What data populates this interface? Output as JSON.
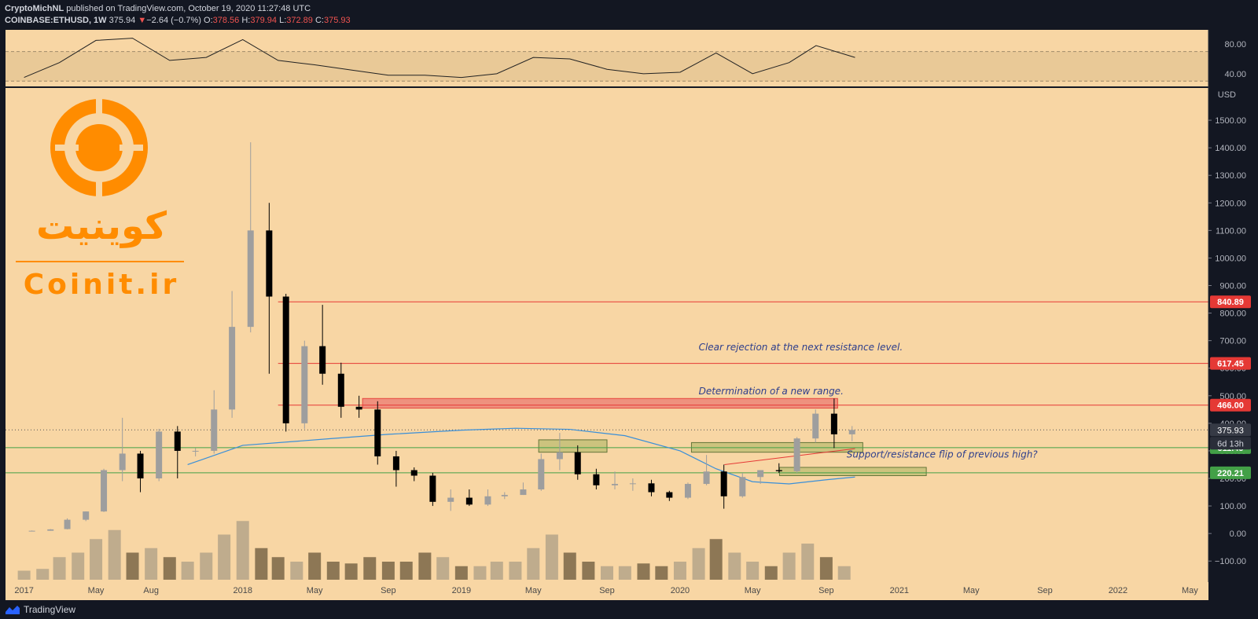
{
  "header": {
    "author": "CryptoMichNL",
    "published": "published on TradingView.com, October 19, 2020 11:27:48 UTC",
    "symbol": "COINBASE:ETHUSD, 1W",
    "last": "375.94",
    "arrow": "▼",
    "change": "−2.64 (−0.7%)",
    "o_label": "O:",
    "o": "378.56",
    "h_label": "H:",
    "h": "379.94",
    "l_label": "L:",
    "l": "372.89",
    "c_label": "C:",
    "c": "375.93"
  },
  "footer": {
    "brand": "TradingView"
  },
  "watermark": {
    "script": "کوینیت",
    "site": "Coinit.ir"
  },
  "colors": {
    "background": "#f8d6a4",
    "up": "#9e9e9e",
    "down": "#000000",
    "resistance": "#e53935",
    "support": "#43a047",
    "rsi_band": "#e5c594",
    "ma": "#3a8fd8",
    "annotation": "#2d3e8c",
    "watermark": "#ff8c00"
  },
  "chart_data": [
    {
      "type": "line",
      "title": "RSI",
      "ylim": [
        25,
        95
      ],
      "y_ticks": [
        "80.00",
        "40.00"
      ],
      "band": [
        30,
        70
      ],
      "x": [
        "2017-01-01",
        "2017-03-01",
        "2017-05-01",
        "2017-07-01",
        "2017-09-01",
        "2017-11-01",
        "2018-01-01",
        "2018-03-01",
        "2018-05-01",
        "2018-07-01",
        "2018-09-01",
        "2018-11-01",
        "2019-01-01",
        "2019-03-01",
        "2019-05-01",
        "2019-07-01",
        "2019-09-01",
        "2019-11-01",
        "2020-01-01",
        "2020-03-01",
        "2020-05-01",
        "2020-07-01",
        "2020-08-15",
        "2020-10-19"
      ],
      "values": [
        35,
        55,
        85,
        88,
        58,
        62,
        86,
        58,
        52,
        45,
        38,
        38,
        35,
        40,
        62,
        60,
        46,
        40,
        42,
        68,
        40,
        55,
        78,
        62
      ]
    },
    {
      "type": "candlestick",
      "symbol": "COINBASE:ETHUSD",
      "interval": "1W",
      "currency": "USD",
      "ylim": [
        -125,
        1600
      ],
      "y_ticks": [
        "1500.00",
        "1400.00",
        "1300.00",
        "1200.00",
        "1100.00",
        "1000.00",
        "900.00",
        "800.00",
        "700.00",
        "600.00",
        "500.00",
        "400.00",
        "300.00",
        "200.00",
        "100.00",
        "0.00",
        "−100.00"
      ],
      "x_ticks": [
        "2017",
        "May",
        "Aug",
        "2018",
        "May",
        "Sep",
        "2019",
        "May",
        "Sep",
        "2020",
        "May",
        "Sep",
        "2021",
        "May",
        "Sep",
        "2022",
        "May"
      ],
      "x_range": [
        "2016-12-01",
        "2022-06-01"
      ],
      "ohlc_monthly": [
        {
          "date": "2017-01-01",
          "open": 8,
          "high": 11,
          "low": 8,
          "close": 10
        },
        {
          "date": "2017-02-01",
          "open": 10,
          "high": 16,
          "low": 10,
          "close": 15
        },
        {
          "date": "2017-03-01",
          "open": 16,
          "high": 55,
          "low": 15,
          "close": 50
        },
        {
          "date": "2017-04-01",
          "open": 50,
          "high": 80,
          "low": 45,
          "close": 80
        },
        {
          "date": "2017-05-01",
          "open": 80,
          "high": 235,
          "low": 78,
          "close": 230
        },
        {
          "date": "2017-06-01",
          "open": 230,
          "high": 420,
          "low": 190,
          "close": 290
        },
        {
          "date": "2017-07-01",
          "open": 290,
          "high": 300,
          "low": 150,
          "close": 200
        },
        {
          "date": "2017-08-01",
          "open": 200,
          "high": 380,
          "low": 190,
          "close": 370
        },
        {
          "date": "2017-09-01",
          "open": 370,
          "high": 390,
          "low": 200,
          "close": 300
        },
        {
          "date": "2017-10-01",
          "open": 300,
          "high": 310,
          "low": 280,
          "close": 300
        },
        {
          "date": "2017-11-01",
          "open": 300,
          "high": 520,
          "low": 290,
          "close": 450
        },
        {
          "date": "2017-12-01",
          "open": 450,
          "high": 880,
          "low": 420,
          "close": 750
        },
        {
          "date": "2018-01-01",
          "open": 750,
          "high": 1420,
          "low": 730,
          "close": 1100
        },
        {
          "date": "2018-02-01",
          "open": 1100,
          "high": 1200,
          "low": 580,
          "close": 860
        },
        {
          "date": "2018-03-01",
          "open": 860,
          "high": 870,
          "low": 370,
          "close": 400
        },
        {
          "date": "2018-04-01",
          "open": 400,
          "high": 700,
          "low": 380,
          "close": 680
        },
        {
          "date": "2018-05-01",
          "open": 680,
          "high": 830,
          "low": 540,
          "close": 580
        },
        {
          "date": "2018-06-01",
          "open": 580,
          "high": 620,
          "low": 420,
          "close": 460
        },
        {
          "date": "2018-07-01",
          "open": 460,
          "high": 500,
          "low": 420,
          "close": 450
        },
        {
          "date": "2018-08-01",
          "open": 450,
          "high": 480,
          "low": 250,
          "close": 280
        },
        {
          "date": "2018-09-01",
          "open": 280,
          "high": 300,
          "low": 170,
          "close": 230
        },
        {
          "date": "2018-10-01",
          "open": 230,
          "high": 240,
          "low": 190,
          "close": 210
        },
        {
          "date": "2018-11-01",
          "open": 210,
          "high": 220,
          "low": 100,
          "close": 115
        },
        {
          "date": "2018-12-01",
          "open": 115,
          "high": 160,
          "low": 82,
          "close": 130
        },
        {
          "date": "2019-01-01",
          "open": 130,
          "high": 160,
          "low": 100,
          "close": 105
        },
        {
          "date": "2019-02-01",
          "open": 105,
          "high": 160,
          "low": 100,
          "close": 135
        },
        {
          "date": "2019-03-01",
          "open": 135,
          "high": 150,
          "low": 125,
          "close": 140
        },
        {
          "date": "2019-04-01",
          "open": 140,
          "high": 185,
          "low": 140,
          "close": 160
        },
        {
          "date": "2019-05-01",
          "open": 160,
          "high": 290,
          "low": 155,
          "close": 270
        },
        {
          "date": "2019-06-01",
          "open": 270,
          "high": 365,
          "low": 230,
          "close": 295
        },
        {
          "date": "2019-07-01",
          "open": 295,
          "high": 320,
          "low": 195,
          "close": 215
        },
        {
          "date": "2019-08-01",
          "open": 215,
          "high": 235,
          "low": 160,
          "close": 175
        },
        {
          "date": "2019-09-01",
          "open": 175,
          "high": 225,
          "low": 160,
          "close": 180
        },
        {
          "date": "2019-10-01",
          "open": 180,
          "high": 200,
          "low": 155,
          "close": 182
        },
        {
          "date": "2019-11-01",
          "open": 182,
          "high": 195,
          "low": 135,
          "close": 150
        },
        {
          "date": "2019-12-01",
          "open": 150,
          "high": 155,
          "low": 118,
          "close": 130
        },
        {
          "date": "2020-01-01",
          "open": 130,
          "high": 185,
          "low": 125,
          "close": 180
        },
        {
          "date": "2020-02-01",
          "open": 180,
          "high": 285,
          "low": 175,
          "close": 225
        },
        {
          "date": "2020-03-01",
          "open": 225,
          "high": 250,
          "low": 90,
          "close": 135
        },
        {
          "date": "2020-04-01",
          "open": 135,
          "high": 220,
          "low": 130,
          "close": 205
        },
        {
          "date": "2020-05-01",
          "open": 205,
          "high": 220,
          "low": 180,
          "close": 230
        },
        {
          "date": "2020-06-01",
          "open": 230,
          "high": 255,
          "low": 220,
          "close": 226
        },
        {
          "date": "2020-07-01",
          "open": 226,
          "high": 350,
          "low": 220,
          "close": 345
        },
        {
          "date": "2020-08-01",
          "open": 345,
          "high": 450,
          "low": 330,
          "close": 435
        },
        {
          "date": "2020-09-01",
          "open": 435,
          "high": 490,
          "low": 310,
          "close": 360
        },
        {
          "date": "2020-10-01",
          "open": 360,
          "high": 390,
          "low": 335,
          "close": 375.93
        }
      ],
      "volume_relative": [
        0.1,
        0.12,
        0.25,
        0.3,
        0.45,
        0.55,
        0.3,
        0.35,
        0.25,
        0.2,
        0.3,
        0.5,
        0.65,
        0.35,
        0.25,
        0.2,
        0.3,
        0.2,
        0.18,
        0.25,
        0.2,
        0.2,
        0.3,
        0.25,
        0.15,
        0.15,
        0.2,
        0.2,
        0.35,
        0.5,
        0.3,
        0.2,
        0.15,
        0.15,
        0.18,
        0.15,
        0.2,
        0.35,
        0.45,
        0.3,
        0.2,
        0.15,
        0.3,
        0.4,
        0.25,
        0.15
      ],
      "horizontal_levels": [
        {
          "price": 840.89,
          "label": "840.89",
          "color": "#e53935"
        },
        {
          "price": 617.45,
          "label": "617.45",
          "color": "#e53935"
        },
        {
          "price": 466.0,
          "label": "466.00",
          "color": "#e53935"
        },
        {
          "price": 311.45,
          "label": "311.45",
          "color": "#43a047"
        },
        {
          "price": 220.21,
          "label": "220.21",
          "color": "#43a047"
        }
      ],
      "last_price": {
        "value": 375.93,
        "label": "375.93",
        "countdown": "6d 13h"
      },
      "zones": [
        {
          "kind": "resistance",
          "x_start": "2018-07-20",
          "x_end": "2020-09-20",
          "low": 455,
          "high": 490
        },
        {
          "kind": "support",
          "x_start": "2019-05-10",
          "x_end": "2019-09-01",
          "low": 295,
          "high": 340
        },
        {
          "kind": "support",
          "x_start": "2020-01-20",
          "x_end": "2020-11-01",
          "low": 295,
          "high": 330
        },
        {
          "kind": "support",
          "x_start": "2020-06-15",
          "x_end": "2021-02-15",
          "low": 210,
          "high": 240
        }
      ],
      "moving_average": {
        "x": [
          "2017-10-01",
          "2018-01-01",
          "2018-06-01",
          "2018-09-01",
          "2019-01-01",
          "2019-04-01",
          "2019-07-01",
          "2019-10-01",
          "2020-01-01",
          "2020-03-01",
          "2020-05-01",
          "2020-07-01",
          "2020-09-01",
          "2020-10-19"
        ],
        "values": [
          250,
          320,
          345,
          360,
          375,
          382,
          378,
          355,
          300,
          235,
          188,
          180,
          195,
          205
        ]
      },
      "trendline": {
        "x": [
          "2020-03-15",
          "2020-10-19"
        ],
        "values": [
          250,
          308
        ]
      },
      "annotations": [
        {
          "text": "Clear rejection at the next resistance level.",
          "x": "2020-02-01",
          "price": 665
        },
        {
          "text": "Determination of a new range.",
          "x": "2020-02-01",
          "price": 505
        },
        {
          "text": "Support/resistance flip of previous high?",
          "x": "2020-10-05",
          "price": 275
        }
      ]
    }
  ]
}
